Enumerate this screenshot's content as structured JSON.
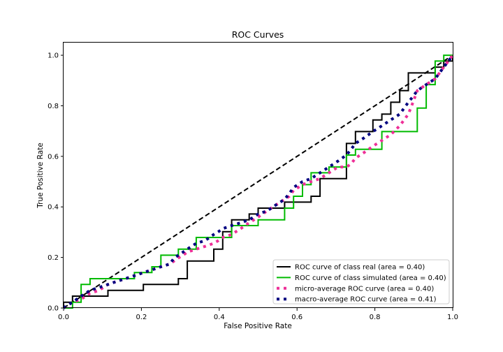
{
  "chart_data": {
    "type": "line",
    "title": "ROC Curves",
    "xlabel": "False Positive Rate",
    "ylabel": "True Positive Rate",
    "xlim": [
      0.0,
      1.0
    ],
    "ylim": [
      0.0,
      1.05
    ],
    "xticks": [
      0.0,
      0.2,
      0.4,
      0.6,
      0.8,
      1.0
    ],
    "yticks": [
      0.0,
      0.2,
      0.4,
      0.6,
      0.8,
      1.0
    ],
    "xtick_labels": [
      "0.0",
      "0.2",
      "0.4",
      "0.6",
      "0.8",
      "1.0"
    ],
    "ytick_labels": [
      "0.0",
      "0.2",
      "0.4",
      "0.6",
      "0.8",
      "1.0"
    ],
    "grid": false,
    "legend_position": "lower-right",
    "diagonal": {
      "x": [
        0,
        1
      ],
      "y": [
        0,
        1
      ],
      "color": "#000000",
      "style": "dashed"
    },
    "series": [
      {
        "name": "ROC curve of class real (area = 0.40)",
        "color": "#000000",
        "style": "solid",
        "x": [
          0.0,
          0.0,
          0.023,
          0.023,
          0.068,
          0.068,
          0.114,
          0.114,
          0.205,
          0.205,
          0.295,
          0.295,
          0.318,
          0.318,
          0.386,
          0.386,
          0.409,
          0.409,
          0.432,
          0.432,
          0.477,
          0.477,
          0.5,
          0.5,
          0.545,
          0.545,
          0.568,
          0.568,
          0.591,
          0.591,
          0.636,
          0.636,
          0.659,
          0.659,
          0.727,
          0.727,
          0.75,
          0.75,
          0.795,
          0.795,
          0.818,
          0.818,
          0.841,
          0.841,
          0.864,
          0.864,
          0.886,
          0.886,
          0.955,
          0.955,
          0.977,
          0.977,
          1.0,
          1.0
        ],
        "y": [
          0.0,
          0.023,
          0.023,
          0.047,
          0.047,
          0.047,
          0.047,
          0.07,
          0.07,
          0.093,
          0.093,
          0.116,
          0.116,
          0.186,
          0.186,
          0.233,
          0.233,
          0.302,
          0.302,
          0.349,
          0.349,
          0.372,
          0.372,
          0.395,
          0.395,
          0.395,
          0.395,
          0.419,
          0.419,
          0.419,
          0.419,
          0.442,
          0.442,
          0.512,
          0.512,
          0.651,
          0.651,
          0.698,
          0.698,
          0.744,
          0.744,
          0.767,
          0.767,
          0.814,
          0.814,
          0.86,
          0.86,
          0.93,
          0.93,
          0.953,
          0.953,
          0.977,
          0.977,
          1.0
        ]
      },
      {
        "name": "ROC curve of class simulated (area = 0.40)",
        "color": "#00bb00",
        "style": "solid",
        "x": [
          0.0,
          0.0,
          0.023,
          0.023,
          0.045,
          0.045,
          0.068,
          0.068,
          0.182,
          0.182,
          0.227,
          0.227,
          0.25,
          0.25,
          0.295,
          0.295,
          0.341,
          0.341,
          0.432,
          0.432,
          0.5,
          0.5,
          0.568,
          0.568,
          0.591,
          0.591,
          0.614,
          0.614,
          0.636,
          0.636,
          0.682,
          0.682,
          0.727,
          0.727,
          0.75,
          0.75,
          0.818,
          0.818,
          0.909,
          0.909,
          0.932,
          0.932,
          0.955,
          0.955,
          0.977,
          0.977,
          1.0
        ],
        "y": [
          0.0,
          0.0,
          0.0,
          0.023,
          0.023,
          0.093,
          0.093,
          0.116,
          0.116,
          0.14,
          0.14,
          0.163,
          0.163,
          0.209,
          0.209,
          0.233,
          0.233,
          0.279,
          0.279,
          0.326,
          0.326,
          0.349,
          0.349,
          0.395,
          0.395,
          0.442,
          0.442,
          0.488,
          0.488,
          0.535,
          0.535,
          0.558,
          0.558,
          0.605,
          0.605,
          0.628,
          0.628,
          0.698,
          0.698,
          0.791,
          0.791,
          0.884,
          0.884,
          0.977,
          0.977,
          1.0,
          1.0
        ]
      },
      {
        "name": "micro-average ROC curve (area = 0.40)",
        "color": "#ee2f97",
        "style": "dotted",
        "x": [
          0.0,
          0.011,
          0.023,
          0.045,
          0.057,
          0.068,
          0.091,
          0.102,
          0.114,
          0.136,
          0.159,
          0.182,
          0.205,
          0.227,
          0.25,
          0.273,
          0.284,
          0.295,
          0.307,
          0.318,
          0.341,
          0.364,
          0.386,
          0.398,
          0.409,
          0.432,
          0.455,
          0.477,
          0.489,
          0.5,
          0.523,
          0.545,
          0.568,
          0.58,
          0.591,
          0.614,
          0.636,
          0.659,
          0.682,
          0.705,
          0.727,
          0.739,
          0.75,
          0.773,
          0.795,
          0.818,
          0.841,
          0.864,
          0.886,
          0.898,
          0.909,
          0.932,
          0.955,
          0.966,
          0.977,
          0.989,
          1.0
        ],
        "y": [
          0.0,
          0.012,
          0.023,
          0.035,
          0.047,
          0.058,
          0.07,
          0.081,
          0.093,
          0.105,
          0.116,
          0.128,
          0.14,
          0.151,
          0.163,
          0.174,
          0.186,
          0.198,
          0.209,
          0.221,
          0.233,
          0.244,
          0.256,
          0.267,
          0.279,
          0.291,
          0.314,
          0.337,
          0.349,
          0.36,
          0.384,
          0.407,
          0.43,
          0.442,
          0.465,
          0.488,
          0.5,
          0.512,
          0.535,
          0.558,
          0.558,
          0.57,
          0.593,
          0.616,
          0.64,
          0.663,
          0.686,
          0.721,
          0.767,
          0.814,
          0.86,
          0.884,
          0.907,
          0.93,
          0.953,
          0.977,
          1.0
        ]
      },
      {
        "name": "macro-average ROC curve (area = 0.41)",
        "color": "#000080",
        "style": "dotted",
        "x": [
          0.0,
          0.011,
          0.023,
          0.045,
          0.057,
          0.068,
          0.091,
          0.114,
          0.136,
          0.159,
          0.182,
          0.205,
          0.227,
          0.25,
          0.273,
          0.284,
          0.295,
          0.307,
          0.318,
          0.341,
          0.364,
          0.386,
          0.398,
          0.409,
          0.432,
          0.455,
          0.477,
          0.489,
          0.5,
          0.523,
          0.545,
          0.568,
          0.58,
          0.591,
          0.614,
          0.636,
          0.659,
          0.682,
          0.705,
          0.727,
          0.739,
          0.75,
          0.773,
          0.795,
          0.818,
          0.841,
          0.864,
          0.886,
          0.898,
          0.909,
          0.932,
          0.955,
          0.966,
          0.977,
          0.989,
          1.0
        ],
        "y": [
          0.0,
          0.012,
          0.023,
          0.047,
          0.058,
          0.07,
          0.081,
          0.093,
          0.105,
          0.116,
          0.128,
          0.14,
          0.151,
          0.163,
          0.174,
          0.198,
          0.209,
          0.221,
          0.233,
          0.256,
          0.267,
          0.291,
          0.302,
          0.314,
          0.326,
          0.337,
          0.349,
          0.36,
          0.372,
          0.384,
          0.407,
          0.43,
          0.453,
          0.477,
          0.5,
          0.512,
          0.535,
          0.558,
          0.581,
          0.605,
          0.628,
          0.651,
          0.674,
          0.698,
          0.721,
          0.744,
          0.767,
          0.814,
          0.837,
          0.86,
          0.884,
          0.907,
          0.93,
          0.953,
          0.977,
          1.0
        ]
      }
    ]
  }
}
